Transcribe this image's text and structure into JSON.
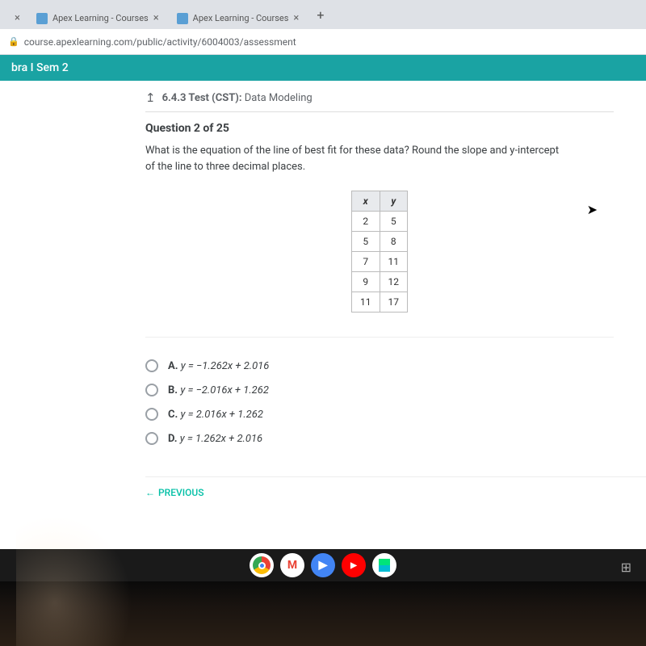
{
  "browser": {
    "tabs": [
      {
        "title": "",
        "hasClose": true
      },
      {
        "title": "Apex Learning - Courses",
        "hasClose": true
      },
      {
        "title": "Apex Learning - Courses",
        "hasClose": true
      }
    ],
    "newTab": "+",
    "url": "course.apexlearning.com/public/activity/6004003/assessment",
    "lockIcon": "🔒"
  },
  "course": {
    "title": "bra I Sem 2"
  },
  "test": {
    "returnIcon": "↥",
    "label": "6.4.3 Test (CST):",
    "name": "Data Modeling"
  },
  "question": {
    "number": "Question 2 of 25",
    "text": "What is the equation of the line of best fit for these data? Round the slope and y-intercept of the line to three decimal places.",
    "table": {
      "headers": [
        "x",
        "y"
      ],
      "rows": [
        [
          "2",
          "5"
        ],
        [
          "5",
          "8"
        ],
        [
          "7",
          "11"
        ],
        [
          "9",
          "12"
        ],
        [
          "11",
          "17"
        ]
      ]
    },
    "answers": [
      {
        "letter": "A.",
        "eq": "y = −1.262x + 2.016"
      },
      {
        "letter": "B.",
        "eq": "y = −2.016x + 1.262"
      },
      {
        "letter": "C.",
        "eq": "y = 2.016x + 1.262"
      },
      {
        "letter": "D.",
        "eq": "y = 1.262x + 2.016"
      }
    ]
  },
  "nav": {
    "previous": "PREVIOUS",
    "prevArrow": "←"
  },
  "shelf": {
    "gmail": "M",
    "docs": "▶",
    "youtube": "▶"
  },
  "colors": {
    "teal": "#1aa3a3",
    "accent": "#00bfa5",
    "text": "#3c4043"
  }
}
